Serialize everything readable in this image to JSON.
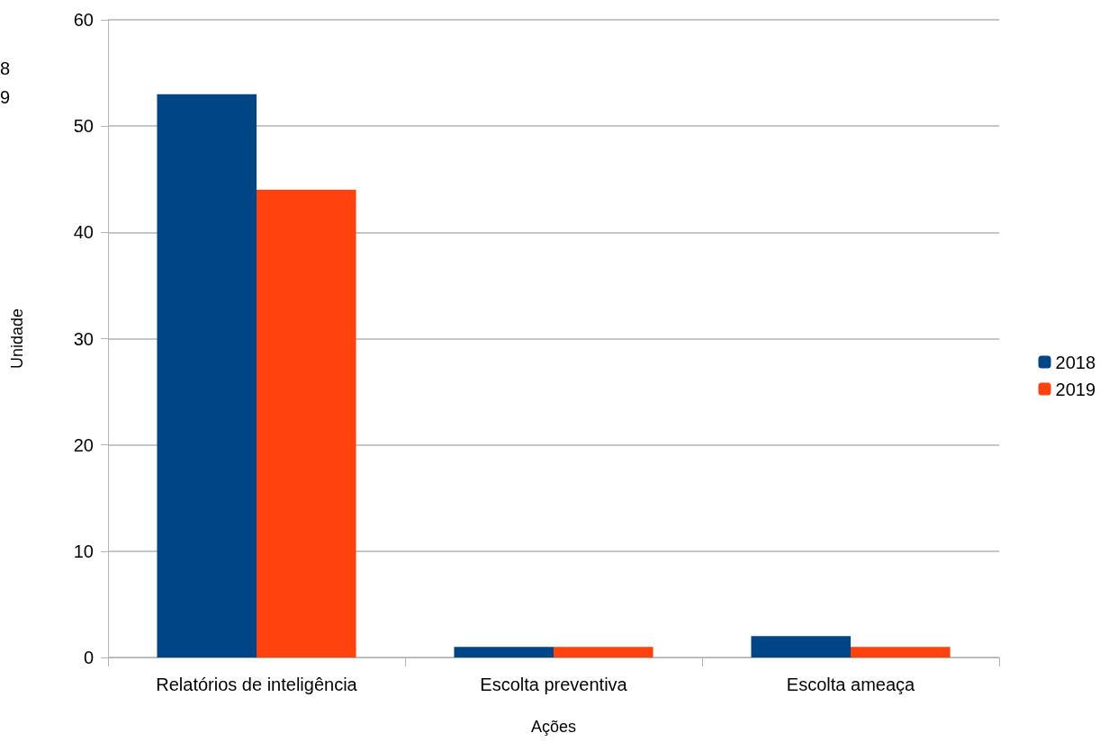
{
  "chart_data": {
    "type": "bar",
    "xlabel": "Ações",
    "ylabel": "Unidade",
    "categories": [
      "Relatórios de inteligência",
      "Escolta preventiva",
      "Escolta ameaça"
    ],
    "series": [
      {
        "name": "2018",
        "color": "#004586",
        "values": [
          53,
          1,
          2
        ]
      },
      {
        "name": "2019",
        "color": "#ff420e",
        "values": [
          44,
          1,
          1
        ]
      }
    ],
    "ylim": [
      0,
      60
    ],
    "yticks": [
      0,
      10,
      20,
      30,
      40,
      50,
      60
    ],
    "grid": "y",
    "legend": "right",
    "annotations": [
      "8",
      "9"
    ]
  }
}
